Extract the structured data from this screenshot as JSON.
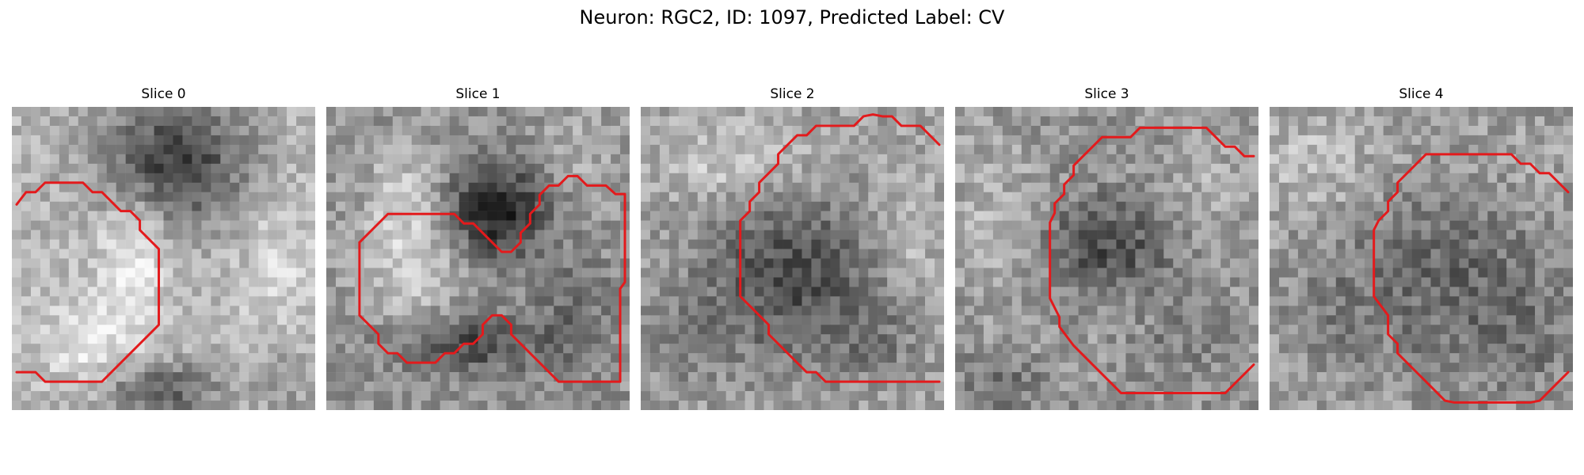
{
  "figure": {
    "title": "Neuron: RGC2, ID: 1097, Predicted Label: CV"
  },
  "colors": {
    "contour": "#e31a1c",
    "background": "#ffffff"
  },
  "slices": [
    {
      "title": "Slice 0"
    },
    {
      "title": "Slice 1"
    },
    {
      "title": "Slice 2"
    },
    {
      "title": "Slice 3"
    },
    {
      "title": "Slice 4"
    }
  ]
}
